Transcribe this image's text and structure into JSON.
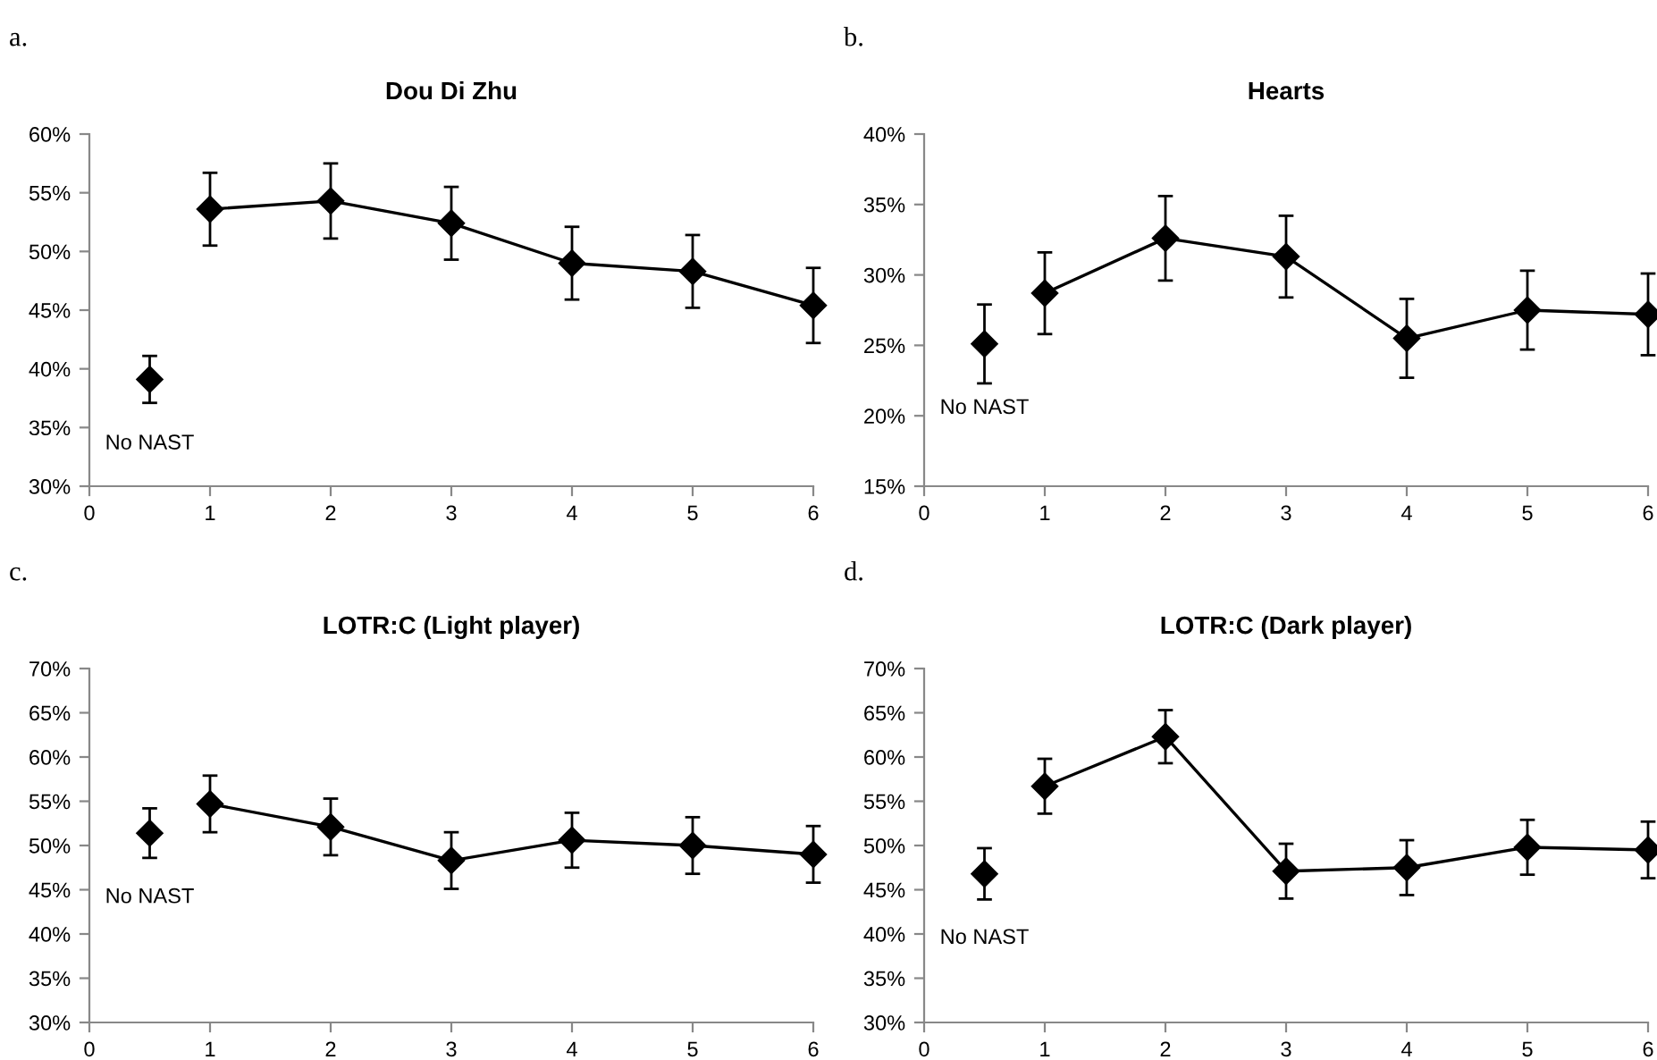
{
  "chart_data": [
    {
      "type": "line",
      "title": "Dou Di Zhu",
      "annotations": [
        "a.",
        "No NAST"
      ],
      "xlim": [
        0,
        6
      ],
      "xticks": [
        0,
        1,
        2,
        3,
        4,
        5,
        6
      ],
      "ylim": [
        30,
        60
      ],
      "yticks": [
        {
          "value": 30,
          "label": "30%"
        },
        {
          "value": 35,
          "label": "35%"
        },
        {
          "value": 40,
          "label": "40%"
        },
        {
          "value": 45,
          "label": "45%"
        },
        {
          "value": 50,
          "label": "50%"
        },
        {
          "value": 55,
          "label": "55%"
        },
        {
          "value": 60,
          "label": "60%"
        }
      ],
      "marker": "diamond",
      "series": [
        {
          "type": "scatter",
          "color": "#000000",
          "x": [
            0.5
          ],
          "values": [
            39.1
          ],
          "errors": [
            2.0
          ]
        },
        {
          "type": "line",
          "color": "#000000",
          "x": [
            1,
            2,
            3,
            4,
            5,
            6
          ],
          "values": [
            53.6,
            54.3,
            52.4,
            49.0,
            48.3,
            45.4
          ],
          "errors": [
            3.1,
            3.2,
            3.1,
            3.1,
            3.1,
            3.2
          ]
        }
      ]
    },
    {
      "type": "line",
      "title": "Hearts",
      "annotations": [
        "b.",
        "No NAST"
      ],
      "xlim": [
        0,
        6
      ],
      "xticks": [
        0,
        1,
        2,
        3,
        4,
        5,
        6
      ],
      "ylim": [
        15,
        40
      ],
      "yticks": [
        {
          "value": 15,
          "label": "15%"
        },
        {
          "value": 20,
          "label": "20%"
        },
        {
          "value": 25,
          "label": "25%"
        },
        {
          "value": 30,
          "label": "30%"
        },
        {
          "value": 35,
          "label": "35%"
        },
        {
          "value": 40,
          "label": "40%"
        }
      ],
      "marker": "diamond",
      "series": [
        {
          "type": "scatter",
          "color": "#000000",
          "x": [
            0.5
          ],
          "values": [
            25.1
          ],
          "errors": [
            2.8
          ]
        },
        {
          "type": "line",
          "color": "#000000",
          "x": [
            1,
            2,
            3,
            4,
            5,
            6
          ],
          "values": [
            28.7,
            32.6,
            31.3,
            25.5,
            27.5,
            27.2
          ],
          "errors": [
            2.9,
            3.0,
            2.9,
            2.8,
            2.8,
            2.9
          ]
        }
      ]
    },
    {
      "type": "line",
      "title": "LOTR:C (Light player)",
      "annotations": [
        "c.",
        "No NAST"
      ],
      "xlim": [
        0,
        6
      ],
      "xticks": [
        0,
        1,
        2,
        3,
        4,
        5,
        6
      ],
      "ylim": [
        30,
        70
      ],
      "yticks": [
        {
          "value": 30,
          "label": "30%"
        },
        {
          "value": 35,
          "label": "35%"
        },
        {
          "value": 40,
          "label": "40%"
        },
        {
          "value": 45,
          "label": "45%"
        },
        {
          "value": 50,
          "label": "50%"
        },
        {
          "value": 55,
          "label": "55%"
        },
        {
          "value": 60,
          "label": "60%"
        },
        {
          "value": 65,
          "label": "65%"
        },
        {
          "value": 70,
          "label": "70%"
        }
      ],
      "marker": "diamond",
      "series": [
        {
          "type": "scatter",
          "color": "#000000",
          "x": [
            0.5
          ],
          "values": [
            51.4
          ],
          "errors": [
            2.8
          ]
        },
        {
          "type": "line",
          "color": "#000000",
          "x": [
            1,
            2,
            3,
            4,
            5,
            6
          ],
          "values": [
            54.7,
            52.1,
            48.3,
            50.6,
            50.0,
            49.0
          ],
          "errors": [
            3.2,
            3.2,
            3.2,
            3.1,
            3.2,
            3.2
          ]
        }
      ]
    },
    {
      "type": "line",
      "title": "LOTR:C (Dark player)",
      "annotations": [
        "d.",
        "No NAST"
      ],
      "xlim": [
        0,
        6
      ],
      "xticks": [
        0,
        1,
        2,
        3,
        4,
        5,
        6
      ],
      "ylim": [
        30,
        70
      ],
      "yticks": [
        {
          "value": 30,
          "label": "30%"
        },
        {
          "value": 35,
          "label": "35%"
        },
        {
          "value": 40,
          "label": "40%"
        },
        {
          "value": 45,
          "label": "45%"
        },
        {
          "value": 50,
          "label": "50%"
        },
        {
          "value": 55,
          "label": "55%"
        },
        {
          "value": 60,
          "label": "60%"
        },
        {
          "value": 65,
          "label": "65%"
        },
        {
          "value": 70,
          "label": "70%"
        }
      ],
      "marker": "diamond",
      "series": [
        {
          "type": "scatter",
          "color": "#000000",
          "x": [
            0.5
          ],
          "values": [
            46.8
          ],
          "errors": [
            2.9
          ]
        },
        {
          "type": "line",
          "color": "#000000",
          "x": [
            1,
            2,
            3,
            4,
            5,
            6
          ],
          "values": [
            56.7,
            62.3,
            47.1,
            47.5,
            49.8,
            49.5
          ],
          "errors": [
            3.1,
            3.0,
            3.1,
            3.1,
            3.1,
            3.2
          ]
        }
      ]
    }
  ]
}
